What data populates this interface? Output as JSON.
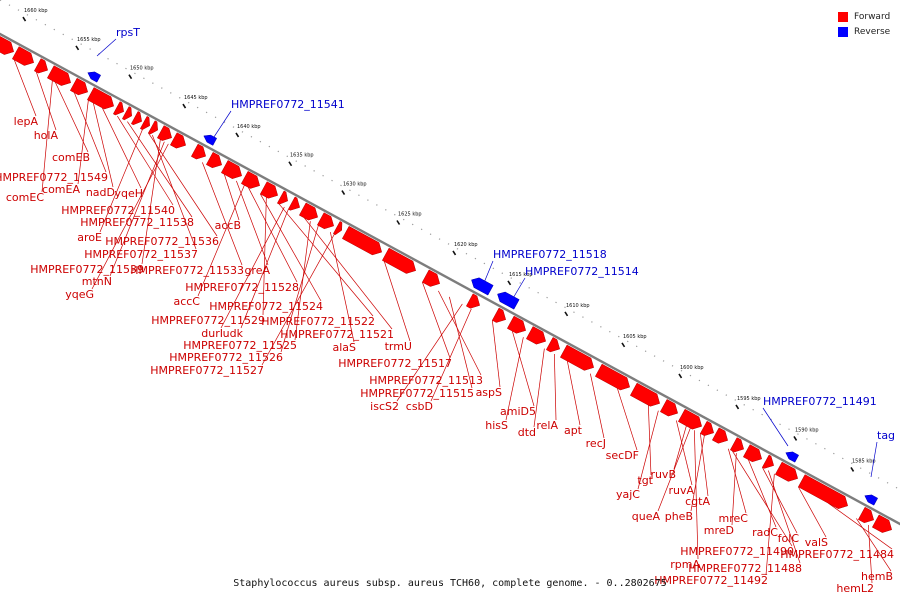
{
  "caption": "Staphylococcus aureus subsp. aureus TCH60, complete genome. - 0..2802675",
  "legend": [
    {
      "label": "Forward",
      "color": "#ff0000"
    },
    {
      "label": "Reverse",
      "color": "#0000ff"
    }
  ],
  "colors": {
    "forward": "#ff0000",
    "reverse": "#0000ff",
    "label_forward": "#cc0000",
    "label_reverse": "#0000cc",
    "axis": "#8a8a8a"
  },
  "scale_ticks": [
    "1660 kbp",
    "1655 kbp",
    "1650 kbp",
    "1645 kbp",
    "1640 kbp",
    "1635 kbp",
    "1630 kbp",
    "1625 kbp",
    "1620 kbp",
    "1615 kbp",
    "1610 kbp",
    "1605 kbp",
    "1600 kbp",
    "1595 kbp",
    "1590 kbp",
    "1585 kbp"
  ],
  "reverse_genes": [
    "rpsT",
    "HMPREF0772_11541",
    "HMPREF0772_11518",
    "HMPREF0772_11514",
    "HMPREF0772_11491",
    "tag"
  ],
  "forward_genes": [
    "lepA",
    "holA",
    "comEB",
    "HMPREF0772_11549",
    "comEA",
    "nadD",
    "comEC",
    "yqeH",
    "HMPREF0772_11540",
    "HMPREF0772_11538",
    "aroE",
    "HMPREF0772_11536",
    "HMPREF0772_11537",
    "HMPREF0772_11539",
    "mtnN",
    "yqeG",
    "accB",
    "HMPREF0772_11533",
    "greA",
    "accC",
    "HMPREF0772_11528",
    "HMPREF0772_11524",
    "HMPREF0772_11529",
    "HMPREF0772_11522",
    "durI",
    "udk",
    "HMPREF0772_11521",
    "HMPREF0772_11525",
    "alaS",
    "HMPREF0772_11526",
    "HMPREF0772_11527",
    "trmU",
    "HMPREF0772_11517",
    "HMPREF0772_11513",
    "HMPREF0772_11515",
    "iscS2",
    "csbD",
    "aspS",
    "amiD5",
    "hisS",
    "dtd",
    "relA",
    "apt",
    "recJ",
    "secDF",
    "tgt",
    "yajC",
    "ruvA",
    "ruvB",
    "queA",
    "cgtA",
    "pheB",
    "mreC",
    "mreD",
    "radC",
    "folC",
    "valS",
    "rpmA",
    "HMPREF0772_11490",
    "HMPREF0772_11488",
    "HMPREF0772_11492",
    "HMPREF0772_11484",
    "hemB",
    "hemL2"
  ]
}
